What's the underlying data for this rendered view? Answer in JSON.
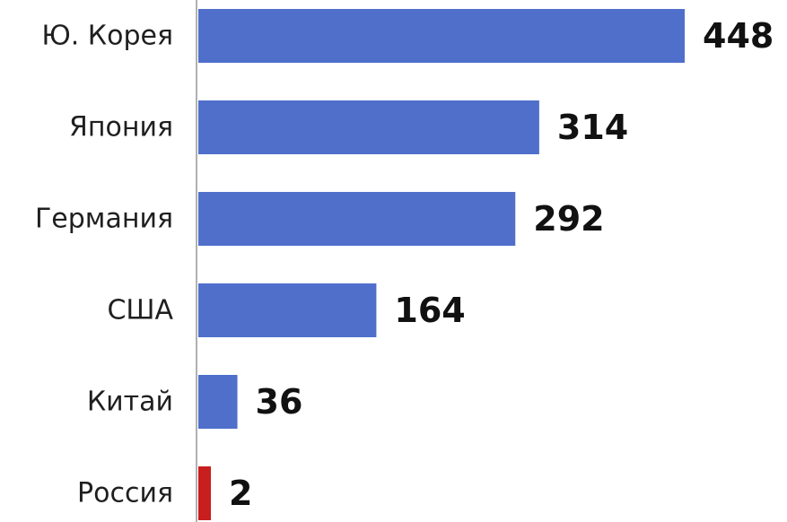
{
  "chart_data": {
    "type": "bar",
    "orientation": "horizontal",
    "categories": [
      "Ю. Корея",
      "Япония",
      "Германия",
      "США",
      "Китай",
      "Россия"
    ],
    "values": [
      448,
      314,
      292,
      164,
      36,
      2
    ],
    "colors": [
      "#4f6fcb",
      "#4f6fcb",
      "#4f6fcb",
      "#4f6fcb",
      "#4f6fcb",
      "#c81e1e"
    ],
    "axis_color": "#b0b0b0",
    "title": "",
    "xlabel": "",
    "ylabel": "",
    "xlim": [
      0,
      448
    ],
    "grid": false,
    "legend": "none"
  }
}
